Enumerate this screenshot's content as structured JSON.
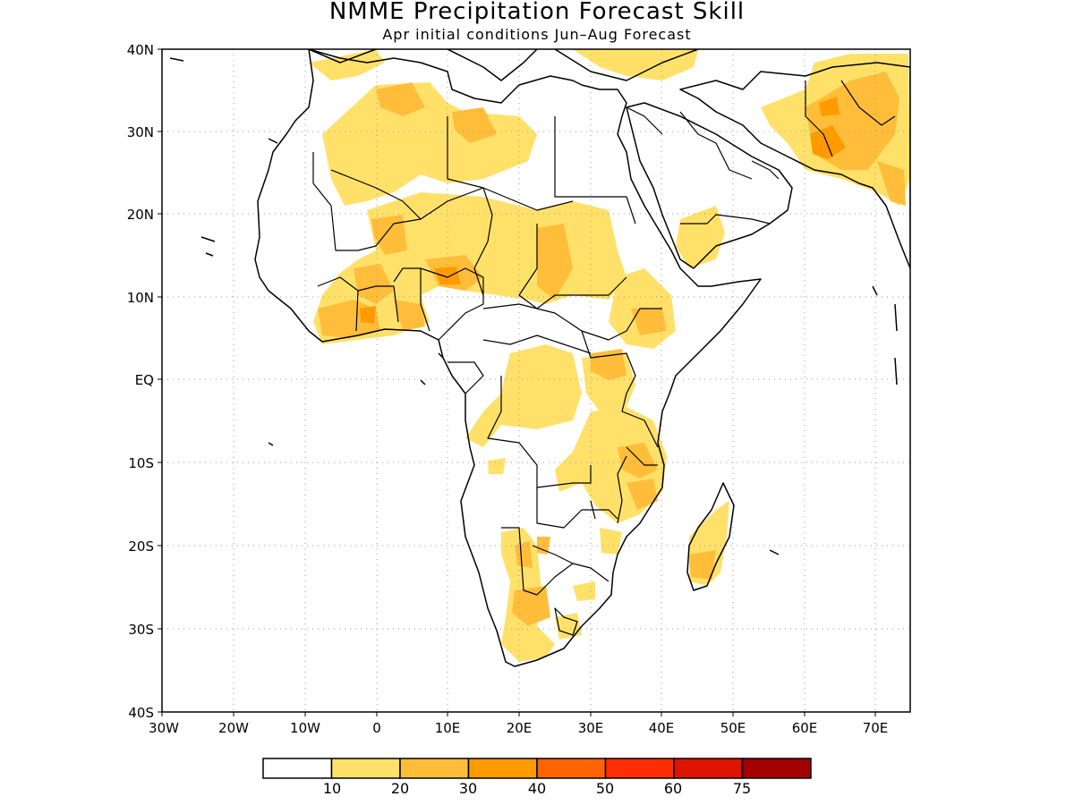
{
  "title": "NMME Precipitation Forecast Skill",
  "subtitle": "Apr initial conditions  Jun–Aug Forecast",
  "map": {
    "lat_labels": [
      "40N",
      "30N",
      "20N",
      "10N",
      "EQ",
      "10S",
      "20S",
      "30S",
      "40S"
    ],
    "lon_labels": [
      "30W",
      "20W",
      "10W",
      "0",
      "10E",
      "20E",
      "30E",
      "40E",
      "50E",
      "60E",
      "70E"
    ],
    "lon_range": [
      -30,
      75
    ],
    "lat_range": [
      -40,
      40
    ],
    "gridlines": "dotted"
  },
  "colorbar": {
    "colors": [
      "#ffffff",
      "#ffe16a",
      "#ffbd3a",
      "#ff9a00",
      "#ff6400",
      "#ff2d00",
      "#dd1400",
      "#a50000"
    ],
    "labels": [
      "10",
      "20",
      "30",
      "40",
      "50",
      "60",
      "75"
    ]
  }
}
